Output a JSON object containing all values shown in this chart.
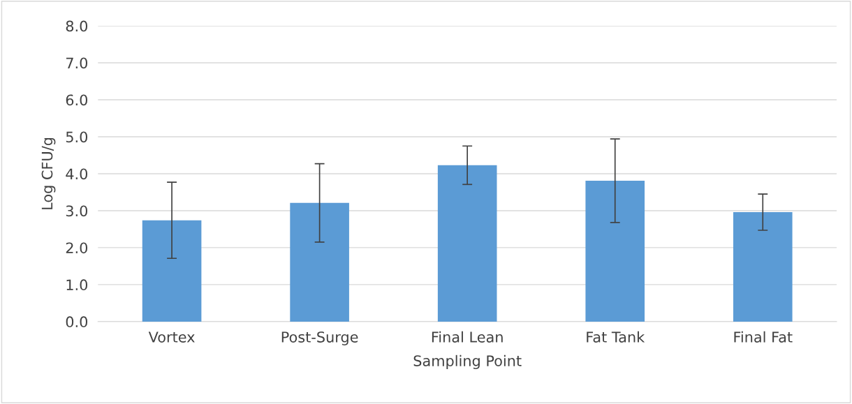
{
  "chart_data": {
    "type": "bar",
    "xlabel": "Sampling Point",
    "ylabel": "Log CFU/g",
    "categories": [
      "Vortex",
      "Post-Surge",
      "Final Lean",
      "Fat Tank",
      "Final Fat"
    ],
    "values": [
      2.74,
      3.21,
      4.23,
      3.81,
      2.96
    ],
    "errors": [
      1.03,
      1.06,
      0.52,
      1.13,
      0.49
    ],
    "color": "#5b9bd5",
    "ylim": [
      0,
      8
    ],
    "yticks": [
      {
        "value": 0,
        "label": "0.0"
      },
      {
        "value": 1,
        "label": "1.0"
      },
      {
        "value": 2,
        "label": "2.0"
      },
      {
        "value": 3,
        "label": "3.0"
      },
      {
        "value": 4,
        "label": "4.0"
      },
      {
        "value": 5,
        "label": "5.0"
      },
      {
        "value": 6,
        "label": "6.0"
      },
      {
        "value": 7,
        "label": "7.0"
      },
      {
        "value": 8,
        "label": "8.0"
      }
    ],
    "grid": "y",
    "legend": false
  }
}
